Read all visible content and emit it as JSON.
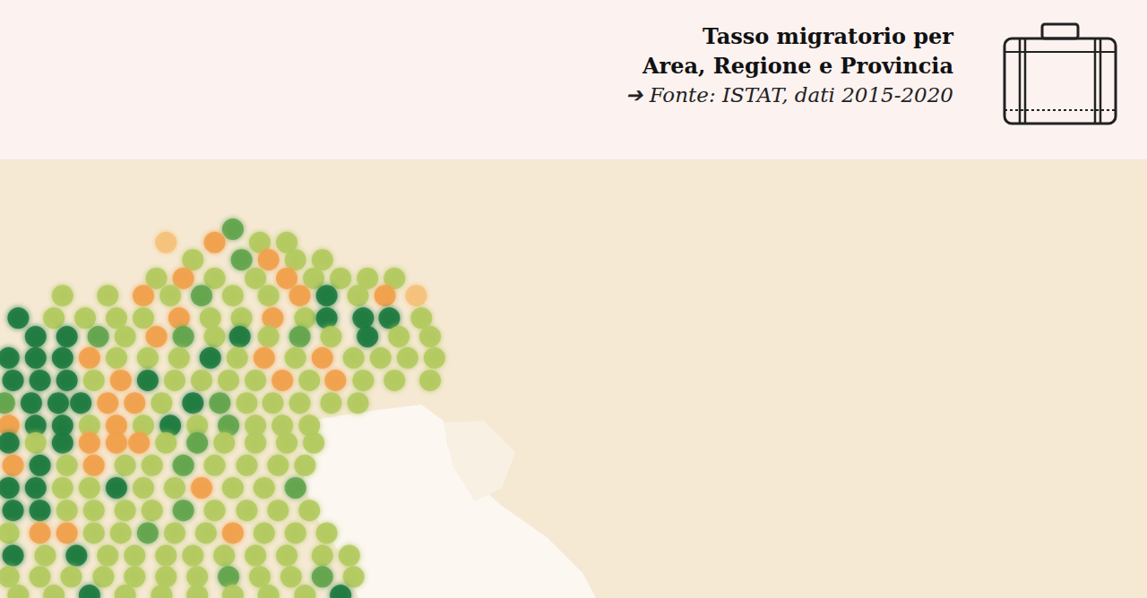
{
  "chart_data": {
    "type": "scatter",
    "title": [
      "Tasso migratorio per",
      "Area, Regione e Provincia"
    ],
    "subtitle": "➔ Fonte: ISTAT, dati 2015-2020",
    "xlim": [
      8.8,
      22.0
    ],
    "ylim": [
      44.1,
      47.4
    ],
    "grid": false,
    "tick_labels": false,
    "marker": "circle",
    "x": [
      11.48,
      10.71,
      11.27,
      11.79,
      12.1,
      11.02,
      11.58,
      11.89,
      12.2,
      12.51,
      10.6,
      10.91,
      11.27,
      11.74,
      12.1,
      12.41,
      12.72,
      13.03,
      13.34,
      9.52,
      10.04,
      10.45,
      10.76,
      11.12,
      11.48,
      11.89,
      12.25,
      12.56,
      12.92,
      13.23,
      13.59,
      9.01,
      9.42,
      9.78,
      10.14,
      10.45,
      10.86,
      11.22,
      11.58,
      11.94,
      12.31,
      12.56,
      12.98,
      13.28,
      13.65,
      9.21,
      9.57,
      9.93,
      10.24,
      10.6,
      10.91,
      11.27,
      11.56,
      11.89,
      12.25,
      12.61,
      13.03,
      13.39,
      13.75,
      8.9,
      9.21,
      9.52,
      9.83,
      10.14,
      10.5,
      10.86,
      11.22,
      11.53,
      11.84,
      12.2,
      12.51,
      12.87,
      13.18,
      13.49,
      13.8,
      8.95,
      9.26,
      9.57,
      9.88,
      10.19,
      10.5,
      10.81,
      11.12,
      11.43,
      11.74,
      12.05,
      12.36,
      12.66,
      12.98,
      13.34,
      13.75,
      8.85,
      9.16,
      9.47,
      9.73,
      10.04,
      10.35,
      10.66,
      11.02,
      11.33,
      11.64,
      11.94,
      12.25,
      12.61,
      12.92,
      8.9,
      9.21,
      9.52,
      9.83,
      10.14,
      10.45,
      10.76,
      11.07,
      11.43,
      11.74,
      12.05,
      12.36,
      8.9,
      9.21,
      9.52,
      9.83,
      10.14,
      10.4,
      10.71,
      11.07,
      11.38,
      11.74,
      12.1,
      12.41,
      8.95,
      9.26,
      9.57,
      9.88,
      10.24,
      10.55,
      10.91,
      11.27,
      11.64,
      12.0,
      12.31,
      8.9,
      9.21,
      9.52,
      9.83,
      10.14,
      10.45,
      10.81,
      11.12,
      11.48,
      11.84,
      12.2,
      8.95,
      9.26,
      9.57,
      9.88,
      10.24,
      10.55,
      10.91,
      11.27,
      11.64,
      12.0,
      12.36,
      8.9,
      9.26,
      9.57,
      9.88,
      10.19,
      10.5,
      10.81,
      11.17,
      11.48,
      11.84,
      12.2,
      12.56,
      8.95,
      9.32,
      9.68,
      10.04,
      10.35,
      10.71,
      11.02,
      11.38,
      11.74,
      12.1,
      12.51,
      12.82,
      8.9,
      9.26,
      9.62,
      9.99,
      10.35,
      10.71,
      11.07,
      11.43,
      11.79,
      12.15,
      12.51,
      12.87,
      9.01,
      9.42,
      9.83,
      10.24,
      10.66,
      11.07,
      11.48,
      11.89,
      12.31,
      12.72
    ],
    "y": [
      46.88,
      46.78,
      46.78,
      46.78,
      46.78,
      46.65,
      46.65,
      46.65,
      46.65,
      46.65,
      46.51,
      46.51,
      46.51,
      46.51,
      46.51,
      46.51,
      46.51,
      46.51,
      46.51,
      46.38,
      46.38,
      46.38,
      46.38,
      46.38,
      46.38,
      46.38,
      46.38,
      46.38,
      46.38,
      46.38,
      46.38,
      46.21,
      46.21,
      46.21,
      46.21,
      46.21,
      46.21,
      46.21,
      46.21,
      46.21,
      46.21,
      46.21,
      46.21,
      46.21,
      46.21,
      46.07,
      46.07,
      46.07,
      46.07,
      46.07,
      46.07,
      46.07,
      46.07,
      46.07,
      46.07,
      46.07,
      46.07,
      46.07,
      46.07,
      45.91,
      45.91,
      45.91,
      45.91,
      45.91,
      45.91,
      45.91,
      45.91,
      45.91,
      45.91,
      45.91,
      45.91,
      45.91,
      45.91,
      45.91,
      45.91,
      45.74,
      45.74,
      45.74,
      45.74,
      45.74,
      45.74,
      45.74,
      45.74,
      45.74,
      45.74,
      45.74,
      45.74,
      45.74,
      45.74,
      45.74,
      45.74,
      45.57,
      45.57,
      45.57,
      45.57,
      45.57,
      45.57,
      45.57,
      45.57,
      45.57,
      45.57,
      45.57,
      45.57,
      45.57,
      45.57,
      45.4,
      45.4,
      45.4,
      45.4,
      45.4,
      45.4,
      45.4,
      45.4,
      45.4,
      45.4,
      45.4,
      45.4,
      45.27,
      45.27,
      45.27,
      45.27,
      45.27,
      45.27,
      45.27,
      45.27,
      45.27,
      45.27,
      45.27,
      45.27,
      45.1,
      45.1,
      45.1,
      45.1,
      45.1,
      45.1,
      45.1,
      45.1,
      45.1,
      45.1,
      45.1,
      44.93,
      44.93,
      44.93,
      44.93,
      44.93,
      44.93,
      44.93,
      44.93,
      44.93,
      44.93,
      44.93,
      44.76,
      44.76,
      44.76,
      44.76,
      44.76,
      44.76,
      44.76,
      44.76,
      44.76,
      44.76,
      44.76,
      44.59,
      44.59,
      44.59,
      44.59,
      44.59,
      44.59,
      44.59,
      44.59,
      44.59,
      44.59,
      44.59,
      44.59,
      44.42,
      44.42,
      44.42,
      44.42,
      44.42,
      44.42,
      44.42,
      44.42,
      44.42,
      44.42,
      44.42,
      44.42,
      44.26,
      44.26,
      44.26,
      44.26,
      44.26,
      44.26,
      44.26,
      44.26,
      44.26,
      44.26,
      44.26,
      44.26,
      44.12,
      44.12,
      44.12,
      44.12,
      44.12,
      44.12,
      44.12,
      44.12,
      44.12,
      44.12
    ],
    "colors": [
      "#62a44c",
      "#f5c27a",
      "#f0a04b",
      "#b3ca60",
      "#b3ca60",
      "#b3ca60",
      "#62a44c",
      "#f0a04b",
      "#b3ca60",
      "#b3ca60",
      "#b3ca60",
      "#f0a04b",
      "#b3ca60",
      "#b3ca60",
      "#f0a04b",
      "#b3ca60",
      "#b3ca60",
      "#b3ca60",
      "#b3ca60",
      "#b3ca60",
      "#b3ca60",
      "#f0a04b",
      "#b3ca60",
      "#62a44c",
      "#b3ca60",
      "#b3ca60",
      "#f0a04b",
      "#1f7a3f",
      "#b3ca60",
      "#f0a04b",
      "#f5c27a",
      "#1f7a3f",
      "#b3ca60",
      "#b3ca60",
      "#b3ca60",
      "#b3ca60",
      "#f0a04b",
      "#b3ca60",
      "#b3ca60",
      "#f0a04b",
      "#b3ca60",
      "#1f7a3f",
      "#1f7a3f",
      "#1f7a3f",
      "#b3ca60",
      "#1f7a3f",
      "#1f7a3f",
      "#62a44c",
      "#b3ca60",
      "#f0a04b",
      "#62a44c",
      "#b3ca60",
      "#1f7a3f",
      "#b3ca60",
      "#62a44c",
      "#b3ca60",
      "#1f7a3f",
      "#b3ca60",
      "#b3ca60",
      "#1f7a3f",
      "#1f7a3f",
      "#1f7a3f",
      "#f0a04b",
      "#b3ca60",
      "#b3ca60",
      "#b3ca60",
      "#1f7a3f",
      "#b3ca60",
      "#f0a04b",
      "#b3ca60",
      "#f0a04b",
      "#b3ca60",
      "#b3ca60",
      "#b3ca60",
      "#b3ca60",
      "#1f7a3f",
      "#1f7a3f",
      "#1f7a3f",
      "#b3ca60",
      "#f0a04b",
      "#1f7a3f",
      "#b3ca60",
      "#b3ca60",
      "#b3ca60",
      "#b3ca60",
      "#f0a04b",
      "#b3ca60",
      "#f0a04b",
      "#b3ca60",
      "#b3ca60",
      "#b3ca60",
      "#62a44c",
      "#1f7a3f",
      "#1f7a3f",
      "#1f7a3f",
      "#f0a04b",
      "#f0a04b",
      "#b3ca60",
      "#1f7a3f",
      "#62a44c",
      "#b3ca60",
      "#b3ca60",
      "#b3ca60",
      "#b3ca60",
      "#b3ca60",
      "#f0a04b",
      "#1f7a3f",
      "#1f7a3f",
      "#b3ca60",
      "#f0a04b",
      "#b3ca60",
      "#1f7a3f",
      "#b3ca60",
      "#62a44c",
      "#b3ca60",
      "#b3ca60",
      "#b3ca60",
      "#1f7a3f",
      "#b3ca60",
      "#1f7a3f",
      "#f0a04b",
      "#f0a04b",
      "#f0a04b",
      "#b3ca60",
      "#62a44c",
      "#b3ca60",
      "#b3ca60",
      "#b3ca60",
      "#b3ca60",
      "#f0a04b",
      "#1f7a3f",
      "#b3ca60",
      "#f0a04b",
      "#b3ca60",
      "#b3ca60",
      "#62a44c",
      "#b3ca60",
      "#b3ca60",
      "#b3ca60",
      "#b3ca60",
      "#1f7a3f",
      "#1f7a3f",
      "#b3ca60",
      "#b3ca60",
      "#1f7a3f",
      "#b3ca60",
      "#b3ca60",
      "#f0a04b",
      "#b3ca60",
      "#b3ca60",
      "#62a44c",
      "#1f7a3f",
      "#1f7a3f",
      "#b3ca60",
      "#b3ca60",
      "#b3ca60",
      "#b3ca60",
      "#62a44c",
      "#b3ca60",
      "#b3ca60",
      "#b3ca60",
      "#b3ca60",
      "#b3ca60",
      "#f0a04b",
      "#f0a04b",
      "#b3ca60",
      "#b3ca60",
      "#62a44c",
      "#b3ca60",
      "#b3ca60",
      "#f0a04b",
      "#b3ca60",
      "#b3ca60",
      "#b3ca60",
      "#1f7a3f",
      "#b3ca60",
      "#1f7a3f",
      "#b3ca60",
      "#b3ca60",
      "#b3ca60",
      "#b3ca60",
      "#b3ca60",
      "#b3ca60",
      "#b3ca60",
      "#b3ca60",
      "#b3ca60",
      "#b3ca60",
      "#b3ca60",
      "#b3ca60",
      "#b3ca60",
      "#b3ca60",
      "#b3ca60",
      "#b3ca60",
      "#62a44c",
      "#b3ca60",
      "#b3ca60",
      "#62a44c",
      "#b3ca60",
      "#b3ca60",
      "#b3ca60",
      "#1f7a3f",
      "#b3ca60",
      "#b3ca60",
      "#b3ca60",
      "#b3ca60",
      "#b3ca60",
      "#b3ca60",
      "#1f7a3f"
    ]
  }
}
